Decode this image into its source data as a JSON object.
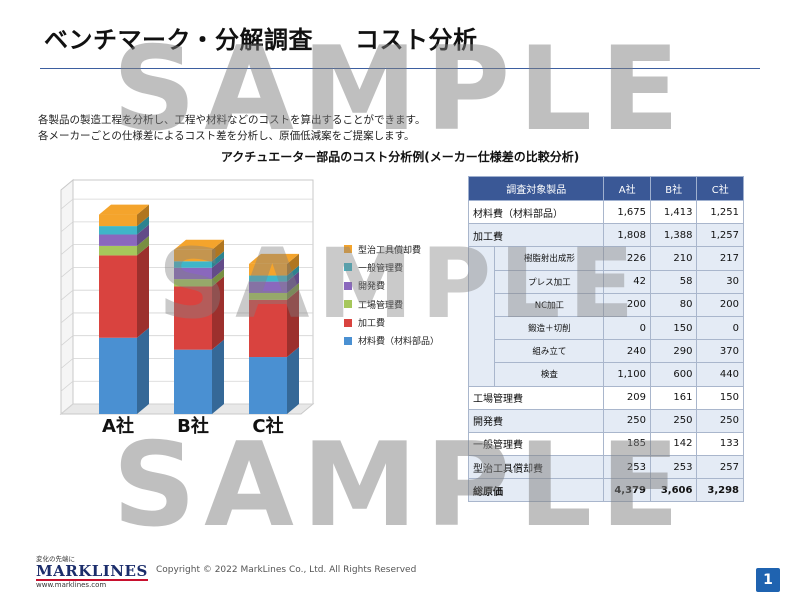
{
  "page": {
    "title_left": "ベンチマーク・分解調査",
    "title_right": "コスト分析",
    "description": [
      "各製品の製造工程を分析し、工程や材料などのコストを算出することができます。",
      "各メーカーごとの仕様差によるコスト差を分析し、原価低減案をご提案します。"
    ],
    "chart_heading": "アクチュエーター部品のコスト分析例(メーカー仕様差の比較分析)",
    "watermark": "SAMPLE",
    "page_number": "1",
    "copyright": "Copyright © 2022 MarkLines Co., Ltd. All Rights Reserved",
    "logo": {
      "tagline": "変化の先端に",
      "name": "MARKLINES",
      "url": "www.marklines.com"
    }
  },
  "chart_data": {
    "type": "bar",
    "stacked": true,
    "three_d": true,
    "categories": [
      "A社",
      "B社",
      "C社"
    ],
    "series": [
      {
        "name": "材料費（材料部品）",
        "values": [
          1675,
          1413,
          1251
        ],
        "color": "#4a90d2"
      },
      {
        "name": "加工費",
        "values": [
          1808,
          1388,
          1257
        ],
        "color": "#d9433f"
      },
      {
        "name": "工場管理費",
        "values": [
          209,
          161,
          150
        ],
        "color": "#a6c75b"
      },
      {
        "name": "開発費",
        "values": [
          250,
          250,
          250
        ],
        "color": "#8a68bd"
      },
      {
        "name": "一般管理費",
        "values": [
          185,
          142,
          133
        ],
        "color": "#3fb6c8"
      },
      {
        "name": "型治工具償却費",
        "values": [
          253,
          253,
          257
        ],
        "color": "#f4a42c"
      }
    ],
    "legend_position": "right",
    "ylim": [
      0,
      4700
    ],
    "grid": true
  },
  "table": {
    "headers": [
      "調査対象製品",
      "A社",
      "B社",
      "C社"
    ],
    "rows": [
      {
        "label": "材料費（材料部品）",
        "values": [
          "1,675",
          "1,413",
          "1,251"
        ],
        "level": 0
      },
      {
        "label": "加工費",
        "values": [
          "1,808",
          "1,388",
          "1,257"
        ],
        "level": 0
      },
      {
        "label": "樹脂射出成形",
        "values": [
          "226",
          "210",
          "217"
        ],
        "level": 1
      },
      {
        "label": "プレス加工",
        "values": [
          "42",
          "58",
          "30"
        ],
        "level": 1
      },
      {
        "label": "NC加工",
        "values": [
          "200",
          "80",
          "200"
        ],
        "level": 1
      },
      {
        "label": "鍛造＋切削",
        "values": [
          "0",
          "150",
          "0"
        ],
        "level": 1
      },
      {
        "label": "組み立て",
        "values": [
          "240",
          "290",
          "370"
        ],
        "level": 1
      },
      {
        "label": "検査",
        "values": [
          "1,100",
          "600",
          "440"
        ],
        "level": 1
      },
      {
        "label": "工場管理費",
        "values": [
          "209",
          "161",
          "150"
        ],
        "level": 0
      },
      {
        "label": "開発費",
        "values": [
          "250",
          "250",
          "250"
        ],
        "level": 0
      },
      {
        "label": "一般管理費",
        "values": [
          "185",
          "142",
          "133"
        ],
        "level": 0
      },
      {
        "label": "型治工具償却費",
        "values": [
          "253",
          "253",
          "257"
        ],
        "level": 0
      },
      {
        "label": "総原価",
        "values": [
          "4,379",
          "3,606",
          "3,298"
        ],
        "level": 0
      }
    ]
  }
}
